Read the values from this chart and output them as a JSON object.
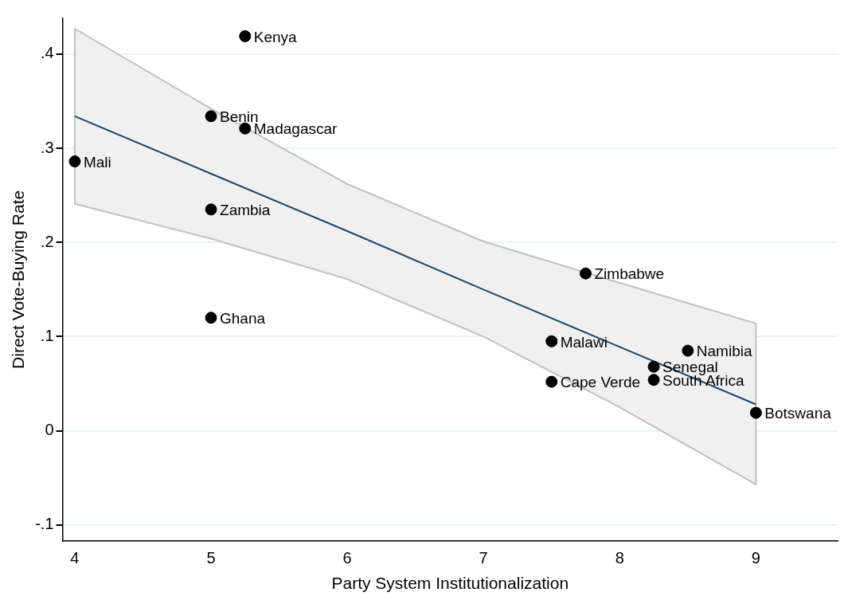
{
  "chart_data": {
    "type": "scatter",
    "xlabel": "Party System Institutionalization",
    "ylabel": "Direct Vote-Buying Rate",
    "xlim": [
      3.91,
      9.6
    ],
    "ylim": [
      -0.117,
      0.438
    ],
    "xticks": [
      4,
      5,
      6,
      7,
      8,
      9
    ],
    "yticks": [
      {
        "value": -0.1,
        "label": "-.1"
      },
      0,
      {
        "value": 0.1,
        "label": ".1"
      },
      {
        "value": 0.2,
        "label": ".2"
      },
      {
        "value": 0.3,
        "label": ".3"
      },
      {
        "value": 0.4,
        "label": ".4"
      }
    ],
    "grid": "y",
    "legend": false,
    "marker": "circle",
    "series": [
      {
        "type": "line",
        "color": "#1a476f",
        "line_style": "solid",
        "marker": "none",
        "x": [
          4,
          5,
          6,
          7,
          8,
          9
        ],
        "values": [
          0.334,
          0.273,
          0.212,
          0.15,
          0.089,
          0.028
        ],
        "lower": [
          0.241,
          0.204,
          0.161,
          0.1,
          0.025,
          -0.057
        ],
        "upper": [
          0.427,
          0.342,
          0.262,
          0.201,
          0.157,
          0.114
        ]
      },
      {
        "type": "scatter",
        "color": "#000000",
        "x": [
          5.25,
          5,
          5.25,
          4,
          5,
          5,
          7.75,
          7.5,
          8.5,
          8.25,
          8.25,
          7.5,
          9
        ],
        "values": [
          0.419,
          0.334,
          0.321,
          0.286,
          0.235,
          0.12,
          0.167,
          0.095,
          0.085,
          0.068,
          0.054,
          0.052,
          0.019
        ]
      }
    ],
    "annotations": [
      {
        "text": "Kenya",
        "x": 5.25,
        "y": 0.419
      },
      {
        "text": "Benin",
        "x": 5,
        "y": 0.334
      },
      {
        "text": "Madagascar",
        "x": 5.25,
        "y": 0.321
      },
      {
        "text": "Mali",
        "x": 4,
        "y": 0.286
      },
      {
        "text": "Zambia",
        "x": 5,
        "y": 0.235
      },
      {
        "text": "Ghana",
        "x": 5,
        "y": 0.12
      },
      {
        "text": "Zimbabwe",
        "x": 7.75,
        "y": 0.167
      },
      {
        "text": "Malawi",
        "x": 7.5,
        "y": 0.095
      },
      {
        "text": "Namibia",
        "x": 8.5,
        "y": 0.085
      },
      {
        "text": "Senegal",
        "x": 8.25,
        "y": 0.068
      },
      {
        "text": "South Africa",
        "x": 8.25,
        "y": 0.054
      },
      {
        "text": "Cape Verde",
        "x": 7.5,
        "y": 0.052
      },
      {
        "text": "Botswana",
        "x": 9,
        "y": 0.019
      }
    ]
  }
}
